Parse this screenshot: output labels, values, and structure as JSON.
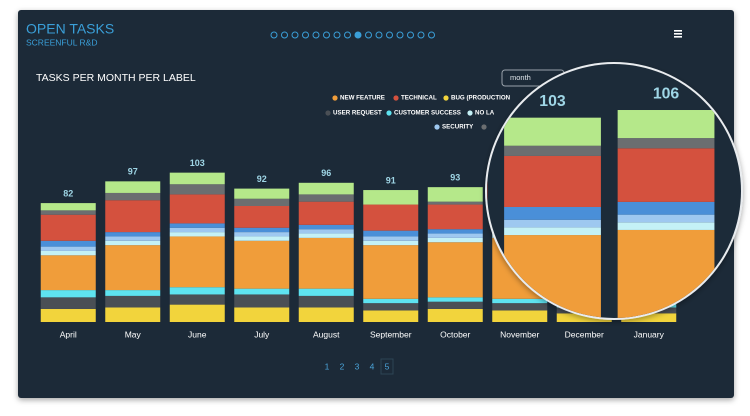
{
  "header": {
    "title": "OPEN TASKS",
    "subtitle": "SCREENFUL R&D"
  },
  "period_select": "month",
  "chart_data": {
    "type": "stacked-bar",
    "title": "TASKS PER MONTH PER LABEL",
    "categories": [
      "April",
      "May",
      "June",
      "July",
      "August",
      "September",
      "October",
      "November",
      "December",
      "January"
    ],
    "totals": [
      82,
      97,
      103,
      92,
      96,
      91,
      93,
      null,
      103,
      106
    ],
    "ylim": [
      0,
      120
    ],
    "series": [
      {
        "name": "BUG (PRODUCTION",
        "color": "#f2d43c",
        "values": [
          9,
          10,
          12,
          10,
          10,
          8,
          9,
          8,
          6,
          6
        ]
      },
      {
        "name": "USER REQUEST",
        "color": "#4a4f55",
        "values": [
          8,
          8,
          7,
          9,
          8,
          5,
          5,
          5,
          4,
          4
        ]
      },
      {
        "name": "CUSTOMER SUCCESS",
        "color": "#5ee3f0",
        "values": [
          5,
          4,
          5,
          4,
          5,
          3,
          3,
          3,
          3,
          3
        ]
      },
      {
        "name": "NEW FEATURE",
        "color": "#f09d3a",
        "values": [
          24,
          31,
          35,
          33,
          35,
          37,
          38,
          42,
          44,
          46
        ]
      },
      {
        "name": "NO LA",
        "color": "#c4f1f6",
        "values": [
          3,
          3,
          3,
          3,
          3,
          3,
          3,
          3,
          3,
          3
        ]
      },
      {
        "name": "SECURITY",
        "color": "#9ec8f0",
        "values": [
          3,
          3,
          3,
          3,
          3,
          3,
          3,
          3,
          3,
          3
        ]
      },
      {
        "color": "#4a8fd8",
        "values": [
          4,
          3,
          3,
          3,
          3,
          4,
          3,
          3,
          5,
          5
        ]
      },
      {
        "name": "TECHNICAL",
        "color": "#d4513e",
        "values": [
          18,
          22,
          20,
          15,
          16,
          18,
          17,
          20,
          20,
          21
        ]
      },
      {
        "color": "#6b6e70",
        "values": [
          3,
          5,
          7,
          5,
          5,
          0,
          2,
          4,
          4,
          4
        ]
      },
      {
        "color": "#b5e88a",
        "values": [
          5,
          8,
          8,
          7,
          8,
          10,
          10,
          12,
          11,
          11
        ]
      }
    ]
  },
  "pages": [
    "1",
    "2",
    "3",
    "4",
    "5"
  ]
}
